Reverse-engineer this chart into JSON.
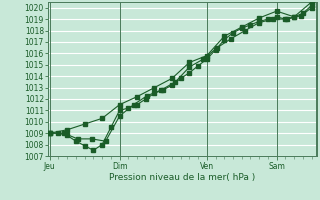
{
  "xlabel": "Pression niveau de la mer( hPa )",
  "ylim": [
    1007,
    1020.5
  ],
  "yticks": [
    1007,
    1008,
    1009,
    1010,
    1011,
    1012,
    1013,
    1014,
    1015,
    1016,
    1017,
    1018,
    1019,
    1020
  ],
  "bg_color": "#c8e8d8",
  "grid_color": "#ffffff",
  "line_color": "#1a5c28",
  "vline_color": "#4a7a5a",
  "xtick_labels": [
    "Jeu",
    "Dim",
    "Ven",
    "Sam"
  ],
  "xtick_positions": [
    0.0,
    2.0,
    4.5,
    6.5
  ],
  "series1_x": [
    0.0,
    0.25,
    0.5,
    0.75,
    1.0,
    1.25,
    1.5,
    1.75,
    2.0,
    2.25,
    2.5,
    2.75,
    3.0,
    3.25,
    3.5,
    3.75,
    4.0,
    4.25,
    4.5,
    4.75,
    5.0,
    5.25,
    5.5,
    5.75,
    6.0,
    6.25,
    6.5,
    6.75,
    7.0,
    7.25,
    7.5
  ],
  "series1_y": [
    1009.0,
    1009.0,
    1008.8,
    1008.3,
    1007.9,
    1007.5,
    1008.0,
    1009.5,
    1011.0,
    1011.2,
    1011.5,
    1012.0,
    1012.5,
    1012.8,
    1013.2,
    1013.8,
    1014.3,
    1014.9,
    1015.5,
    1016.3,
    1017.2,
    1017.8,
    1018.2,
    1018.5,
    1018.8,
    1019.0,
    1019.2,
    1019.0,
    1019.2,
    1019.5,
    1020.2
  ],
  "series2_x": [
    0.0,
    0.4,
    0.8,
    1.2,
    1.6,
    2.0,
    2.4,
    2.8,
    3.2,
    3.6,
    4.0,
    4.4,
    4.8,
    5.2,
    5.6,
    6.0,
    6.4,
    6.8,
    7.2,
    7.5
  ],
  "series2_y": [
    1009.0,
    1009.0,
    1008.5,
    1008.5,
    1008.3,
    1010.5,
    1011.5,
    1012.3,
    1012.8,
    1013.5,
    1014.8,
    1015.5,
    1016.5,
    1017.3,
    1018.0,
    1018.7,
    1019.0,
    1019.0,
    1019.3,
    1020.0
  ],
  "series3_x": [
    0.0,
    0.5,
    1.0,
    1.5,
    2.0,
    2.5,
    3.0,
    3.5,
    4.0,
    4.5,
    5.0,
    5.5,
    6.0,
    6.5,
    7.0,
    7.5
  ],
  "series3_y": [
    1009.0,
    1009.3,
    1009.8,
    1010.3,
    1011.5,
    1012.2,
    1013.0,
    1013.8,
    1015.2,
    1015.8,
    1017.5,
    1018.3,
    1019.1,
    1019.7,
    1019.2,
    1020.5
  ],
  "xlim": [
    -0.05,
    7.65
  ]
}
